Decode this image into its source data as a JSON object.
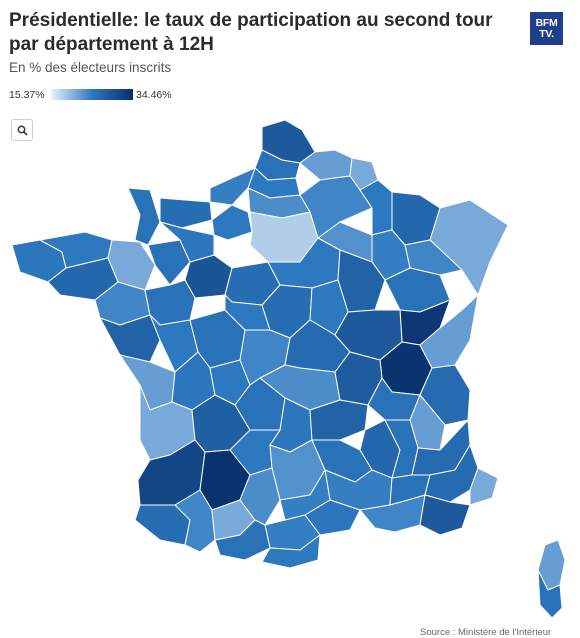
{
  "title": "Présidentielle: le taux de participation au second tour par département à 12H",
  "subtitle": "En % des électeurs inscrits",
  "logo": {
    "line1": "BFM",
    "line2": "TV."
  },
  "legend": {
    "min": "15.37%",
    "max": "34.46%",
    "color_min": "#eaf2fb",
    "color_mid": "#2d79c0",
    "color_max": "#08306b"
  },
  "search": {
    "icon": "search-icon"
  },
  "source": "Source : Ministère de l'Intérieur",
  "map": {
    "stroke": "#ffffff",
    "regions": [
      {
        "id": "nord",
        "level": 0.72
      },
      {
        "id": "pas-de-calais",
        "level": 0.55
      },
      {
        "id": "aisne",
        "level": 0.35
      },
      {
        "id": "ardennes",
        "level": 0.3
      },
      {
        "id": "somme",
        "level": 0.5
      },
      {
        "id": "seine-maritime",
        "level": 0.48
      },
      {
        "id": "manche",
        "level": 0.55
      },
      {
        "id": "calvados",
        "level": 0.58
      },
      {
        "id": "eure",
        "level": 0.5
      },
      {
        "id": "oise",
        "level": 0.42
      },
      {
        "id": "idf",
        "level": 0.15
      },
      {
        "id": "marne",
        "level": 0.45
      },
      {
        "id": "meuse",
        "level": 0.5
      },
      {
        "id": "moselle",
        "level": 0.62
      },
      {
        "id": "alsace",
        "level": 0.3
      },
      {
        "id": "vosges",
        "level": 0.45
      },
      {
        "id": "finistere",
        "level": 0.52
      },
      {
        "id": "cotes-armor",
        "level": 0.5
      },
      {
        "id": "morbihan",
        "level": 0.62
      },
      {
        "id": "ille-vilaine",
        "level": 0.3
      },
      {
        "id": "mayenne",
        "level": 0.55
      },
      {
        "id": "sarthe",
        "level": 0.75
      },
      {
        "id": "orne",
        "level": 0.52
      },
      {
        "id": "loire-atl",
        "level": 0.45
      },
      {
        "id": "maine-loire",
        "level": 0.55
      },
      {
        "id": "loiret",
        "level": 0.58
      },
      {
        "id": "yonne",
        "level": 0.5
      },
      {
        "id": "aube",
        "level": 0.4
      },
      {
        "id": "haute-marne",
        "level": 0.48
      },
      {
        "id": "cote-or",
        "level": 0.65
      },
      {
        "id": "doubs",
        "level": 0.55
      },
      {
        "id": "jura",
        "level": 0.95
      },
      {
        "id": "vendee",
        "level": 0.65
      },
      {
        "id": "deux-sevres",
        "level": 0.5
      },
      {
        "id": "vienne",
        "level": 0.55
      },
      {
        "id": "indre",
        "level": 0.5
      },
      {
        "id": "cher",
        "level": 0.58
      },
      {
        "id": "nievre",
        "level": 0.5
      },
      {
        "id": "saone-loire",
        "level": 0.72
      },
      {
        "id": "ain",
        "level": 0.97
      },
      {
        "id": "savoie",
        "level": 0.6
      },
      {
        "id": "haute-savoie",
        "level": 0.35
      },
      {
        "id": "charente-mar",
        "level": 0.35
      },
      {
        "id": "charente",
        "level": 0.52
      },
      {
        "id": "hte-vienne",
        "level": 0.5
      },
      {
        "id": "creuse",
        "level": 0.45
      },
      {
        "id": "allier",
        "level": 0.6
      },
      {
        "id": "puy-dome",
        "level": 0.42
      },
      {
        "id": "loire",
        "level": 0.7
      },
      {
        "id": "rhone",
        "level": 0.55
      },
      {
        "id": "isere",
        "level": 0.35
      },
      {
        "id": "gironde",
        "level": 0.3
      },
      {
        "id": "dordogne",
        "level": 0.68
      },
      {
        "id": "correze",
        "level": 0.55
      },
      {
        "id": "cantal",
        "level": 0.52
      },
      {
        "id": "haute-loire",
        "level": 0.65
      },
      {
        "id": "ardeche",
        "level": 0.62
      },
      {
        "id": "drome",
        "level": 0.55
      },
      {
        "id": "hautes-alpes",
        "level": 0.6
      },
      {
        "id": "landes",
        "level": 0.85
      },
      {
        "id": "lot-garonne",
        "level": 0.98
      },
      {
        "id": "lot",
        "level": 0.5
      },
      {
        "id": "aveyron",
        "level": 0.4
      },
      {
        "id": "lozere",
        "level": 0.55
      },
      {
        "id": "gard",
        "level": 0.48
      },
      {
        "id": "vaucluse",
        "level": 0.55
      },
      {
        "id": "alpes-hte-prov",
        "level": 0.6
      },
      {
        "id": "alpes-mar",
        "level": 0.3
      },
      {
        "id": "pyr-atl",
        "level": 0.58
      },
      {
        "id": "htes-pyr",
        "level": 0.45
      },
      {
        "id": "gers",
        "level": 0.3
      },
      {
        "id": "hte-garonne",
        "level": 0.42
      },
      {
        "id": "tarn",
        "level": 0.48
      },
      {
        "id": "herault",
        "level": 0.52
      },
      {
        "id": "aude",
        "level": 0.48
      },
      {
        "id": "ariege",
        "level": 0.55
      },
      {
        "id": "pyr-or",
        "level": 0.5
      },
      {
        "id": "bouches-rhone",
        "level": 0.45
      },
      {
        "id": "var",
        "level": 0.72
      },
      {
        "id": "corse-n",
        "level": 0.35
      },
      {
        "id": "corse-s",
        "level": 0.55
      }
    ]
  }
}
